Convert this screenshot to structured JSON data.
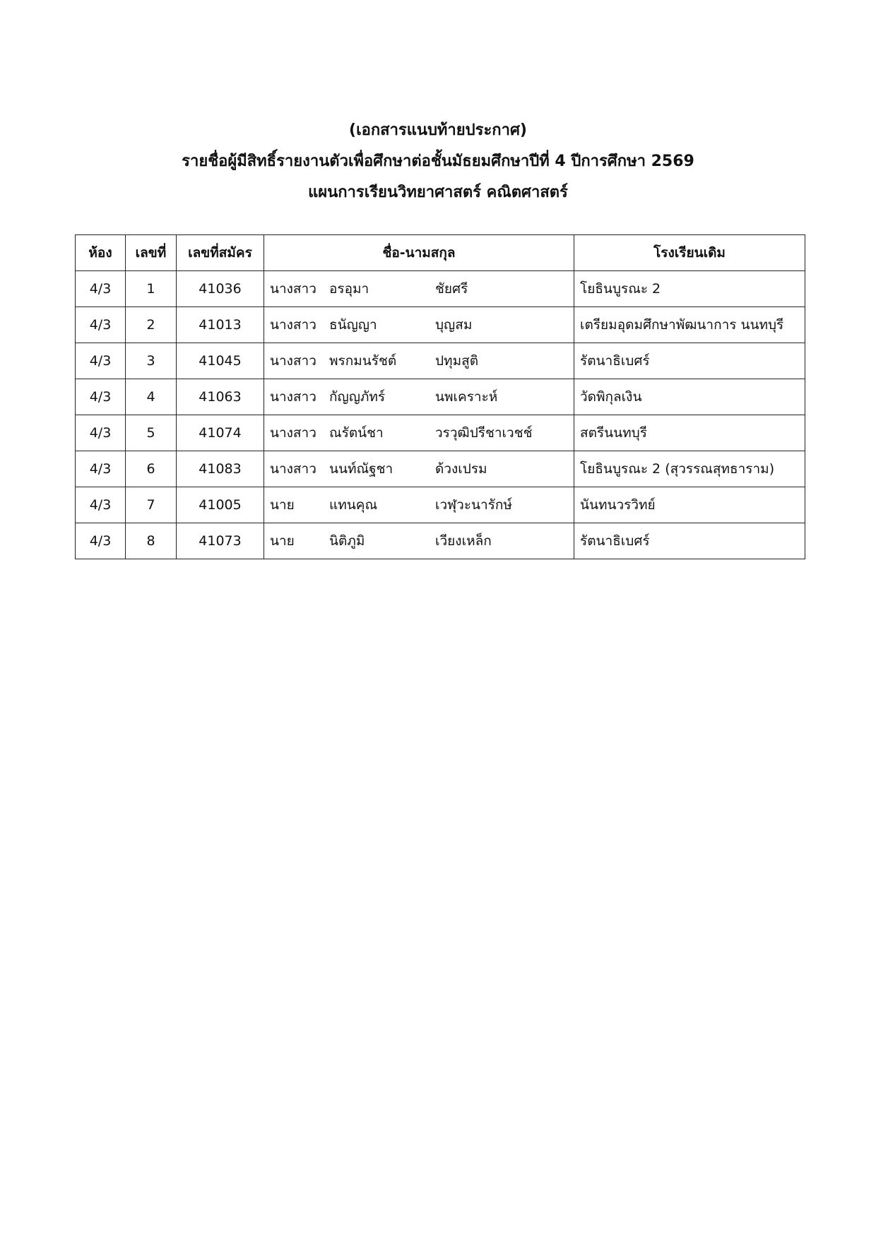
{
  "header": {
    "line1": "(เอกสารแนบท้ายประกาศ)",
    "line2": "รายชื่อผู้มีสิทธิ์รายงานตัวเพื่อศึกษาต่อชั้นมัธยมศึกษาปีที่ 4 ปีการศึกษา 2569",
    "line3": "แผนการเรียนวิทยาศาสตร์ คณิตศาสตร์"
  },
  "table": {
    "columns": [
      "ห้อง",
      "เลขที่",
      "เลขที่สมัคร",
      "ชื่อ-นามสกุล",
      "โรงเรียนเดิม"
    ],
    "rows": [
      {
        "room": "4/3",
        "no": "1",
        "app": "41036",
        "prefix": "นางสาว",
        "first": "อรอุมา",
        "last": "ชัยศรี",
        "school": "โยธินบูรณะ 2"
      },
      {
        "room": "4/3",
        "no": "2",
        "app": "41013",
        "prefix": "นางสาว",
        "first": "ธนัญญา",
        "last": "บุญสม",
        "school": "เตรียมอุดมศึกษาพัฒนาการ นนทบุรี"
      },
      {
        "room": "4/3",
        "no": "3",
        "app": "41045",
        "prefix": "นางสาว",
        "first": "พรกมนรัชต์",
        "last": "ปทุมสูติ",
        "school": "รัตนาธิเบศร์"
      },
      {
        "room": "4/3",
        "no": "4",
        "app": "41063",
        "prefix": "นางสาว",
        "first": "กัญญภัทร์",
        "last": "นพเคราะห์",
        "school": "วัดพิกุลเงิน"
      },
      {
        "room": "4/3",
        "no": "5",
        "app": "41074",
        "prefix": "นางสาว",
        "first": "ณรัตน์ชา",
        "last": "วรวุฒิปรีชาเวชช์",
        "school": "สตรีนนทบุรี"
      },
      {
        "room": "4/3",
        "no": "6",
        "app": "41083",
        "prefix": "นางสาว",
        "first": "นนท์ณัฐชา",
        "last": "ด้วงเปรม",
        "school": "โยธินบูรณะ 2 (สุวรรณสุทธาราม)"
      },
      {
        "room": "4/3",
        "no": "7",
        "app": "41005",
        "prefix": "นาย",
        "first": "แทนคุณ",
        "last": "เวฬุวะนารักษ์",
        "school": "นันทนวรวิทย์"
      },
      {
        "room": "4/3",
        "no": "8",
        "app": "41073",
        "prefix": "นาย",
        "first": "นิติภูมิ",
        "last": "เวียงเหล็ก",
        "school": "รัตนาธิเบศร์"
      }
    ]
  }
}
